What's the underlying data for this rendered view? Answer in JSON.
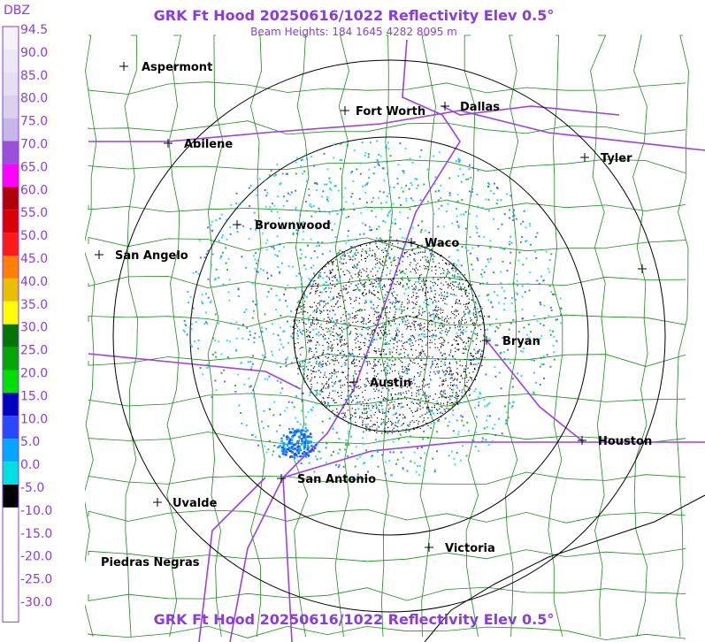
{
  "header": {
    "title": "GRK Ft Hood 20250616/1022 Reflectivity Elev 0.5°",
    "subtitle": "Beam Heights: 184 1645 4282 8095 m"
  },
  "scale": {
    "unit": "DBZ",
    "items": [
      {
        "label": "94.5",
        "color": "#f6f2fa"
      },
      {
        "label": "90.0",
        "color": "#eee8f6"
      },
      {
        "label": "85.0",
        "color": "#e6def2"
      },
      {
        "label": "80.0",
        "color": "#dcd0ee"
      },
      {
        "label": "75.0",
        "color": "#c8b6e6"
      },
      {
        "label": "70.0",
        "color": "#9a50d8"
      },
      {
        "label": "65.0",
        "color": "#ff00ff"
      },
      {
        "label": "60.0",
        "color": "#b00000"
      },
      {
        "label": "55.0",
        "color": "#d80000"
      },
      {
        "label": "50.0",
        "color": "#ff1a1a"
      },
      {
        "label": "45.0",
        "color": "#ff8000"
      },
      {
        "label": "40.0",
        "color": "#e8c000"
      },
      {
        "label": "35.0",
        "color": "#ffff00"
      },
      {
        "label": "30.0",
        "color": "#007800"
      },
      {
        "label": "25.0",
        "color": "#00a800"
      },
      {
        "label": "20.0",
        "color": "#00e000"
      },
      {
        "label": "15.0",
        "color": "#0000c0"
      },
      {
        "label": "10.0",
        "color": "#2848ff"
      },
      {
        "label": "5.0",
        "color": "#00a8ff"
      },
      {
        "label": "0.0",
        "color": "#00e0e0"
      },
      {
        "label": "-5.0",
        "color": "#000000"
      },
      {
        "label": "-10.0",
        "color": "#ffffff"
      },
      {
        "label": "-15.0",
        "color": "#ffffff"
      },
      {
        "label": "-20.0",
        "color": "#ffffff"
      },
      {
        "label": "-25.0",
        "color": "#ffffff"
      },
      {
        "label": "-30.0",
        "color": "#ffffff"
      }
    ]
  },
  "cities": [
    "Aspermont",
    "Fort Worth",
    "Dallas",
    "Abilene",
    "Tyler",
    "Brownwood",
    "Waco",
    "San Angelo",
    "Bryan",
    "Austin",
    "Houston",
    "San Antonio",
    "Uvalde",
    "Victoria",
    "Piedras Negras"
  ],
  "footer": {
    "title": "GRK Ft Hood 20250616/1022 Reflectivity Elev 0.5°"
  }
}
